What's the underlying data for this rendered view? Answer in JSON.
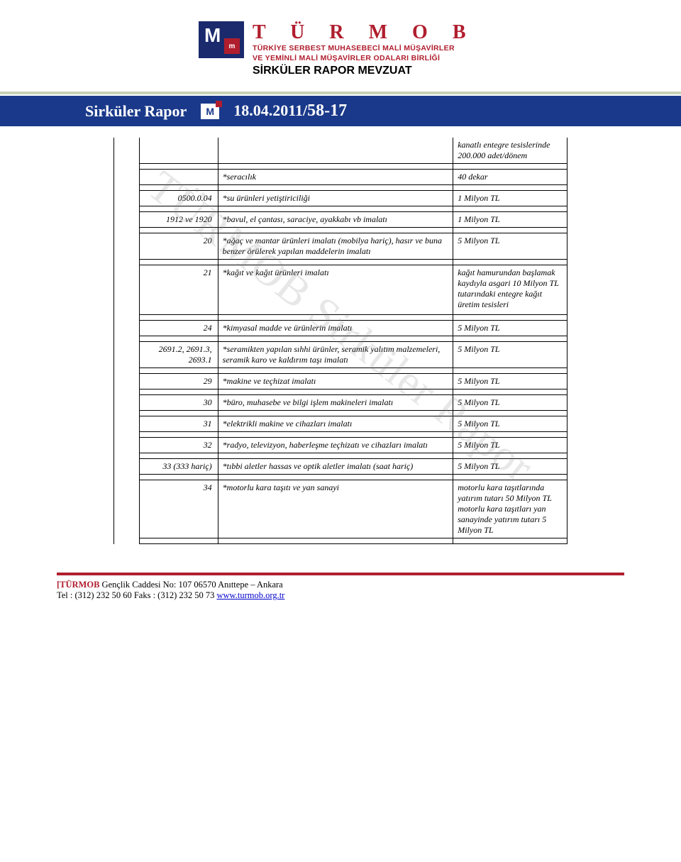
{
  "header": {
    "brand_title": "T Ü R M O B",
    "brand_sub1": "TÜRKİYE SERBEST MUHASEBECİ MALİ MÜŞAVİRLER",
    "brand_sub2": "VE  YEMİNLİ  MALİ   MÜŞAVİRLER  ODALARI  BİRLİĞİ",
    "section": "SİRKÜLER RAPOR MEVZUAT",
    "logo_inner": "m"
  },
  "ribbon": {
    "title": "Sirküler Rapor",
    "logo_letter": "M",
    "date": "18.04.2011/",
    "issue": "58-17"
  },
  "watermark": "TÜRMOB Sirküler Rapor",
  "rows": [
    {
      "type": "data-top",
      "code": "",
      "desc": "",
      "val": "kanatlı entegre tesislerinde 200.000 adet/dönem"
    },
    {
      "type": "empty"
    },
    {
      "type": "data",
      "code": "",
      "desc": "*seracılık",
      "val": "40 dekar"
    },
    {
      "type": "empty"
    },
    {
      "type": "data",
      "code": "0500.0.04",
      "desc": "*su ürünleri yetiştiriciliği",
      "val": "1 Milyon TL"
    },
    {
      "type": "empty"
    },
    {
      "type": "data",
      "code": "1912 ve 1920",
      "desc": "*bavul, el çantası, saraciye, ayakkabı vb imalatı",
      "val": "1 Milyon TL"
    },
    {
      "type": "empty"
    },
    {
      "type": "data",
      "code": "20",
      "desc": "*ağaç ve mantar ürünleri imalatı (mobilya hariç), hasır ve buna benzer örülerek yapılan maddelerin imalatı",
      "val": "5 Milyon TL"
    },
    {
      "type": "empty"
    },
    {
      "type": "data-tall",
      "code": "21",
      "desc": "*kağıt ve kağıt ürünleri imalatı",
      "val": "kağıt hamurundan başlamak kaydıyla asgari 10 Milyon TL tutarındaki entegre kağıt üretim tesisleri"
    },
    {
      "type": "empty"
    },
    {
      "type": "data",
      "code": "24",
      "desc": "*kimyasal madde ve ürünlerin imalatı",
      "val": "5 Milyon TL"
    },
    {
      "type": "empty"
    },
    {
      "type": "data",
      "code": "2691.2, 2691.3, 2693.1",
      "desc": "*seramikten yapılan sıhhi ürünler, seramik yalıtım malzemeleri, seramik karo ve kaldırım taşı imalatı",
      "val": "5 Milyon TL"
    },
    {
      "type": "empty"
    },
    {
      "type": "data",
      "code": "29",
      "desc": "*makine ve teçhizat imalatı",
      "val": "5 Milyon TL"
    },
    {
      "type": "empty"
    },
    {
      "type": "data",
      "code": "30",
      "desc": "*büro, muhasebe ve bilgi işlem makineleri imalatı",
      "val": "5 Milyon TL"
    },
    {
      "type": "empty"
    },
    {
      "type": "data",
      "code": "31",
      "desc": "*elektrikli makine ve cihazları imalatı",
      "val": "5 Milyon TL"
    },
    {
      "type": "empty"
    },
    {
      "type": "data",
      "code": "32",
      "desc": "*radyo, televizyon, haberleşme teçhizatı ve cihazları imalatı",
      "val": "5 Milyon TL"
    },
    {
      "type": "empty"
    },
    {
      "type": "data",
      "code": "33 (333 hariç)",
      "desc": "*tıbbi aletler hassas ve optik aletler imalatı (saat hariç)",
      "val": "5 Milyon TL"
    },
    {
      "type": "empty"
    },
    {
      "type": "data-tall",
      "code": "34",
      "desc": "*motorlu kara taşıtı ve yan sanayi",
      "val": "motorlu kara taşıtlarında yatırım tutarı 50 Milyon TL motorlu kara taşıtları yan sanayinde yatırım tutarı 5 Milyon TL"
    },
    {
      "type": "empty"
    }
  ],
  "footer": {
    "prefix": "[TÜRMOB",
    "addr": " Gençlik Caddesi No: 107  06570  Anıttepe – Ankara",
    "tel": "Tel : (312) 232 50 60 Faks : (312) 232 50 73  ",
    "url": "www.turmob.org.tr"
  },
  "colors": {
    "brand_red": "#b01e2e",
    "ribbon_blue": "#1a398a",
    "stripe_green": "#5d7a2a",
    "logo_navy": "#1a2a6c",
    "link_blue": "#0000cc"
  }
}
